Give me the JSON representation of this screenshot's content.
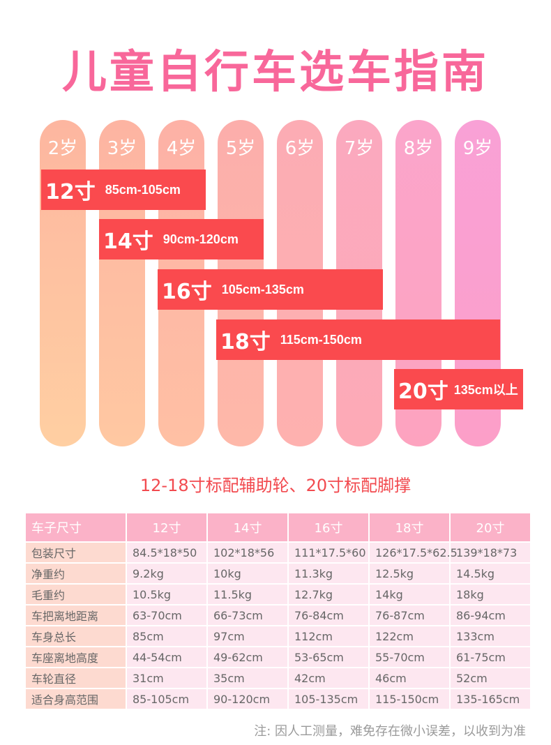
{
  "title": "儿童自行车选车指南",
  "ages": [
    {
      "label": "2岁",
      "color_top": "#fdb6a0",
      "color_bottom": "#ffcfa2"
    },
    {
      "label": "3岁",
      "color_top": "#fdb4a2",
      "color_bottom": "#ffc8a2"
    },
    {
      "label": "4岁",
      "color_top": "#fdb1a6",
      "color_bottom": "#ffc0a4"
    },
    {
      "label": "5岁",
      "color_top": "#fcaeab",
      "color_bottom": "#feb8a9"
    },
    {
      "label": "6岁",
      "color_top": "#fcacb4",
      "color_bottom": "#feb1af"
    },
    {
      "label": "7岁",
      "color_top": "#fba9bf",
      "color_bottom": "#fdaab6"
    },
    {
      "label": "8岁",
      "color_top": "#fba5cb",
      "color_bottom": "#fda3bf"
    },
    {
      "label": "9岁",
      "color_top": "#f9a1d6",
      "color_bottom": "#fc9fc8"
    }
  ],
  "size_bands": [
    {
      "size": "12寸",
      "range": "85cm-105cm"
    },
    {
      "size": "14寸",
      "range": "90cm-120cm"
    },
    {
      "size": "16寸",
      "range": "105cm-135cm"
    },
    {
      "size": "18寸",
      "range": "115cm-150cm"
    },
    {
      "size": "20寸",
      "range": "135cm以上"
    }
  ],
  "subtitle": "12-18寸标配辅助轮、20寸标配脚撑",
  "table": {
    "headers": [
      "车子尺寸",
      "12寸",
      "14寸",
      "16寸",
      "18寸",
      "20寸"
    ],
    "rows": [
      {
        "label": "包装尺寸",
        "values": [
          "84.5*18*50",
          "102*18*56",
          "111*17.5*60",
          "126*17.5*62.5",
          "139*18*73"
        ]
      },
      {
        "label": "净重约",
        "values": [
          "9.2kg",
          "10kg",
          "11.3kg",
          "12.5kg",
          "14.5kg"
        ]
      },
      {
        "label": "毛重约",
        "values": [
          "10.5kg",
          "11.5kg",
          "12.7kg",
          "14kg",
          "18kg"
        ]
      },
      {
        "label": "车把离地距离",
        "values": [
          "63-70cm",
          "66-73cm",
          "76-84cm",
          "76-87cm",
          "86-94cm"
        ]
      },
      {
        "label": "车身总长",
        "values": [
          "85cm",
          "97cm",
          "112cm",
          "122cm",
          "133cm"
        ]
      },
      {
        "label": "车座离地高度",
        "values": [
          "44-54cm",
          "49-62cm",
          "53-65cm",
          "55-70cm",
          "61-75cm"
        ]
      },
      {
        "label": "车轮直径",
        "values": [
          "31cm",
          "35cm",
          "42cm",
          "46cm",
          "52cm"
        ]
      },
      {
        "label": "适合身高范围",
        "values": [
          "85-105cm",
          "90-120cm",
          "105-135cm",
          "115-150cm",
          "135-165cm"
        ]
      }
    ]
  },
  "note": "注: 因人工测量，难免存在微小误差，以收到为准",
  "colors": {
    "title": "#f8679a",
    "band": "#fa4a4e",
    "subtitle": "#f24a4f",
    "table_header": "#fbb2c8",
    "table_label": "#fddad0",
    "table_value": "#fde7f0"
  }
}
